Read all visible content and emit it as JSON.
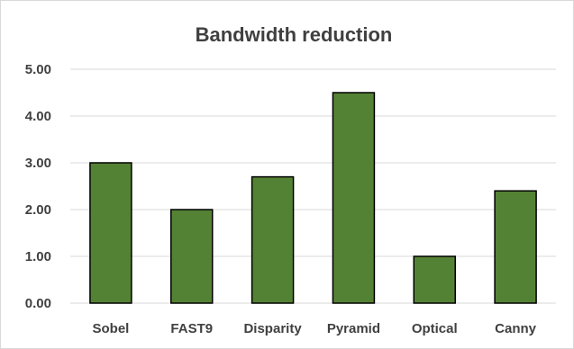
{
  "chart_data": {
    "type": "bar",
    "title": "Bandwidth reduction",
    "xlabel": "",
    "ylabel": "",
    "categories": [
      "Sobel",
      "FAST9",
      "Disparity",
      "Pyramid",
      "Optical",
      "Canny"
    ],
    "values": [
      3.0,
      2.0,
      2.7,
      4.5,
      1.0,
      2.4
    ],
    "ylim": [
      0,
      5
    ],
    "yticks": [
      "0.00",
      "1.00",
      "2.00",
      "3.00",
      "4.00",
      "5.00"
    ],
    "grid": true,
    "legend": "none",
    "bar_color": "#548235"
  }
}
